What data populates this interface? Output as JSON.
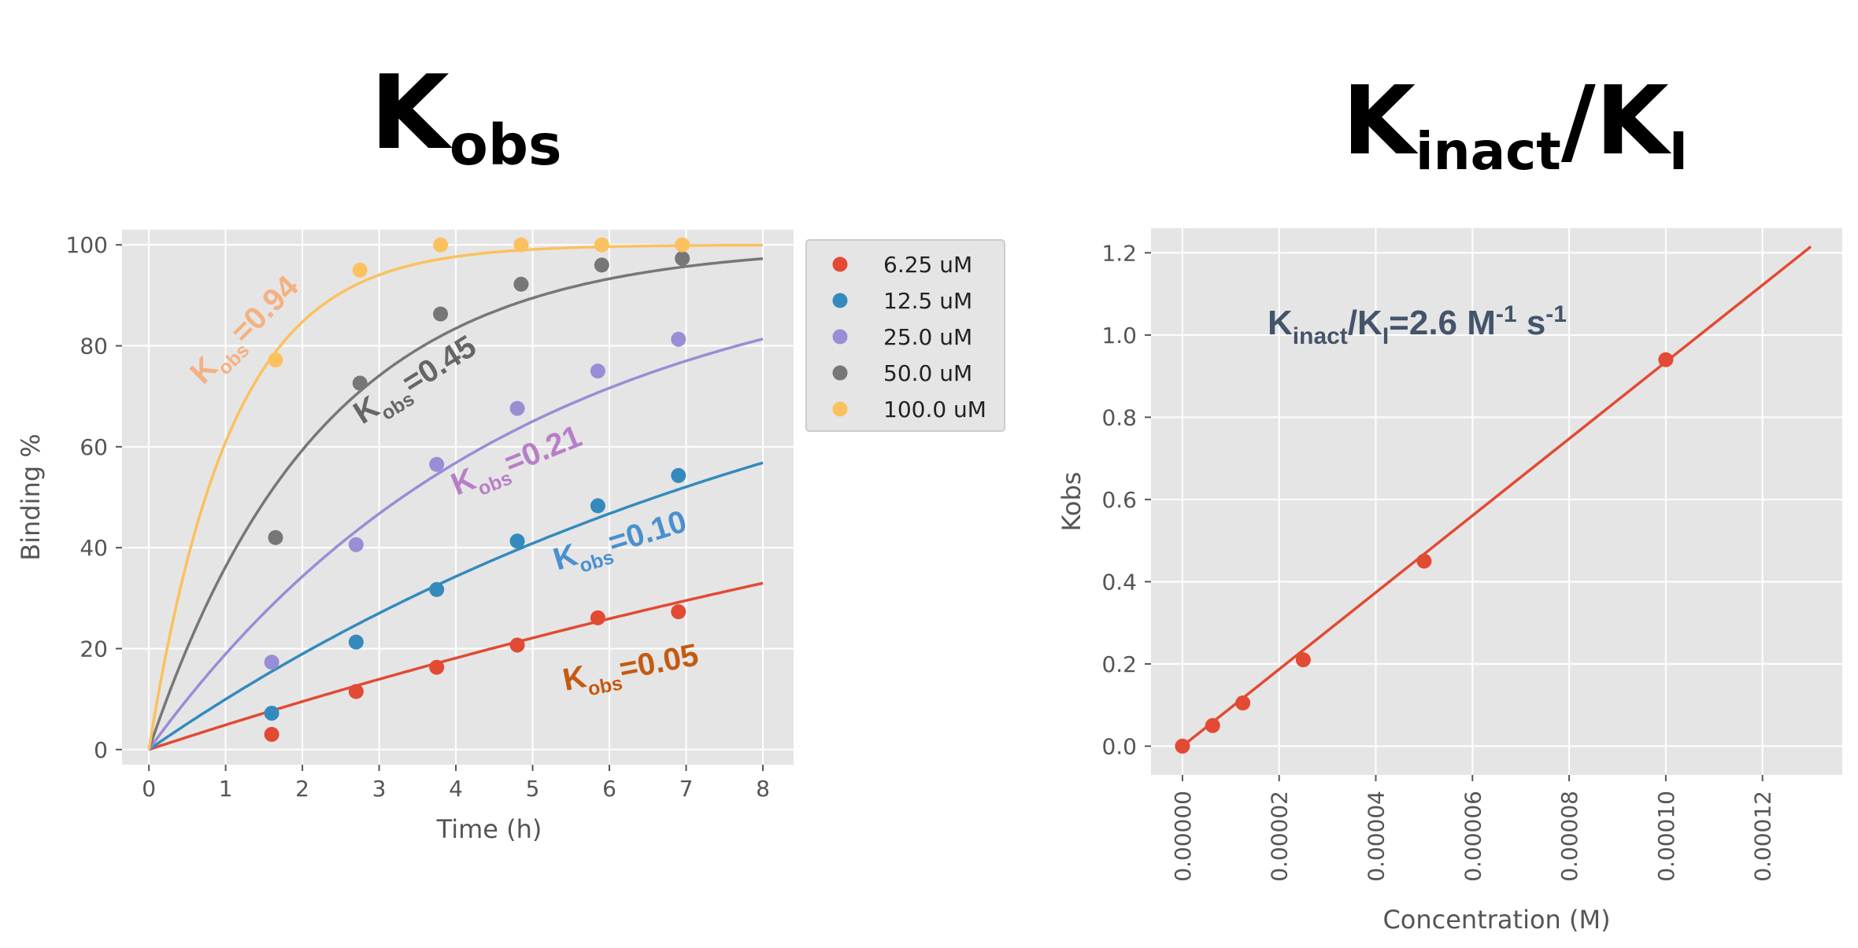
{
  "titles": {
    "left": {
      "main": "K",
      "sub": "obs"
    },
    "right": {
      "main1": "K",
      "sub1": "inact",
      "main2": "/K",
      "sub2": "I"
    }
  },
  "chart_data": [
    {
      "type": "scatter",
      "xlabel": "Time (h)",
      "ylabel": "Binding %",
      "xlim": [
        -0.35,
        8.4
      ],
      "ylim": [
        -3,
        103
      ],
      "xticks": [
        0,
        1,
        2,
        3,
        4,
        5,
        6,
        7,
        8
      ],
      "yticks": [
        0,
        20,
        40,
        60,
        80,
        100
      ],
      "grid": true,
      "legend": "outside-right",
      "series": [
        {
          "name": "6.25 uM",
          "color": "#e24a33",
          "x": [
            1.6,
            2.7,
            3.75,
            4.8,
            5.85,
            6.9
          ],
          "y": [
            3,
            11.5,
            16.3,
            20.7,
            26.1,
            27.3
          ],
          "fit_k": 0.05,
          "label_prefix": "K",
          "label_sub": "obs",
          "label_value": "=0.05",
          "label_color": "#c55a11"
        },
        {
          "name": "12.5 uM",
          "color": "#348abd",
          "x": [
            1.6,
            2.7,
            3.75,
            4.8,
            5.85,
            6.9
          ],
          "y": [
            7.2,
            21.3,
            31.7,
            41.3,
            48.3,
            54.3
          ],
          "fit_k": 0.105,
          "label_prefix": "K",
          "label_sub": "obs",
          "label_value": "=0.10",
          "label_color": "#4a90d0"
        },
        {
          "name": "25.0 uM",
          "color": "#988ed5",
          "x": [
            1.6,
            2.7,
            3.75,
            4.8,
            5.85,
            6.9
          ],
          "y": [
            17.3,
            40.6,
            56.5,
            67.6,
            75,
            81.3
          ],
          "fit_k": 0.21,
          "label_prefix": "K",
          "label_sub": "obs",
          "label_value": "=0.21",
          "label_color": "#b77fc7"
        },
        {
          "name": "50.0 uM",
          "color": "#777777",
          "x": [
            1.65,
            2.75,
            3.8,
            4.85,
            5.9,
            6.95
          ],
          "y": [
            42,
            72.6,
            86.3,
            92.2,
            96,
            97.3
          ],
          "fit_k": 0.45,
          "label_prefix": "K",
          "label_sub": "obs",
          "label_value": "=0.45",
          "label_color": "#666666"
        },
        {
          "name": "100.0 uM",
          "color": "#fbc15e",
          "x": [
            1.65,
            2.75,
            3.8,
            4.85,
            5.9,
            6.95
          ],
          "y": [
            77.2,
            95,
            100,
            100,
            100,
            100
          ],
          "fit_k": 0.94,
          "label_prefix": "K",
          "label_sub": "obs",
          "label_value": "=0.94",
          "label_color": "#f4b183"
        }
      ]
    },
    {
      "type": "scatter",
      "xlabel": "Concentration (M)",
      "ylabel": "Kobs",
      "xlim": [
        -6.5e-06,
        0.0001365
      ],
      "ylim": [
        -0.07,
        1.26
      ],
      "xticks": [
        0,
        2e-05,
        4e-05,
        6e-05,
        8e-05,
        0.0001,
        0.00012
      ],
      "xtick_labels": [
        "0.00000",
        "0.00002",
        "0.00004",
        "0.00006",
        "0.00008",
        "0.00010",
        "0.00012"
      ],
      "yticks": [
        0,
        0.2,
        0.4,
        0.6,
        0.8,
        1.0,
        1.2
      ],
      "ytick_labels": [
        "0.0",
        "0.2",
        "0.4",
        "0.6",
        "0.8",
        "1.0",
        "1.2"
      ],
      "grid": true,
      "series": [
        {
          "color": "#e24a33",
          "x": [
            0,
            6.25e-06,
            1.25e-05,
            2.5e-05,
            5e-05,
            0.0001
          ],
          "y": [
            0,
            0.05,
            0.105,
            0.21,
            0.45,
            0.94
          ]
        }
      ],
      "fit_line": {
        "x": [
          0,
          0.00013
        ],
        "y": [
          0,
          1.215
        ],
        "color": "#e24a33"
      },
      "annotation": {
        "p1": "K",
        "s1": "inact",
        "p2": "/K",
        "s2": "I",
        "p3": "=2.6 M",
        "s3": "-1",
        "p4": " s",
        "s4": "-1",
        "color": "#44546a"
      }
    }
  ]
}
